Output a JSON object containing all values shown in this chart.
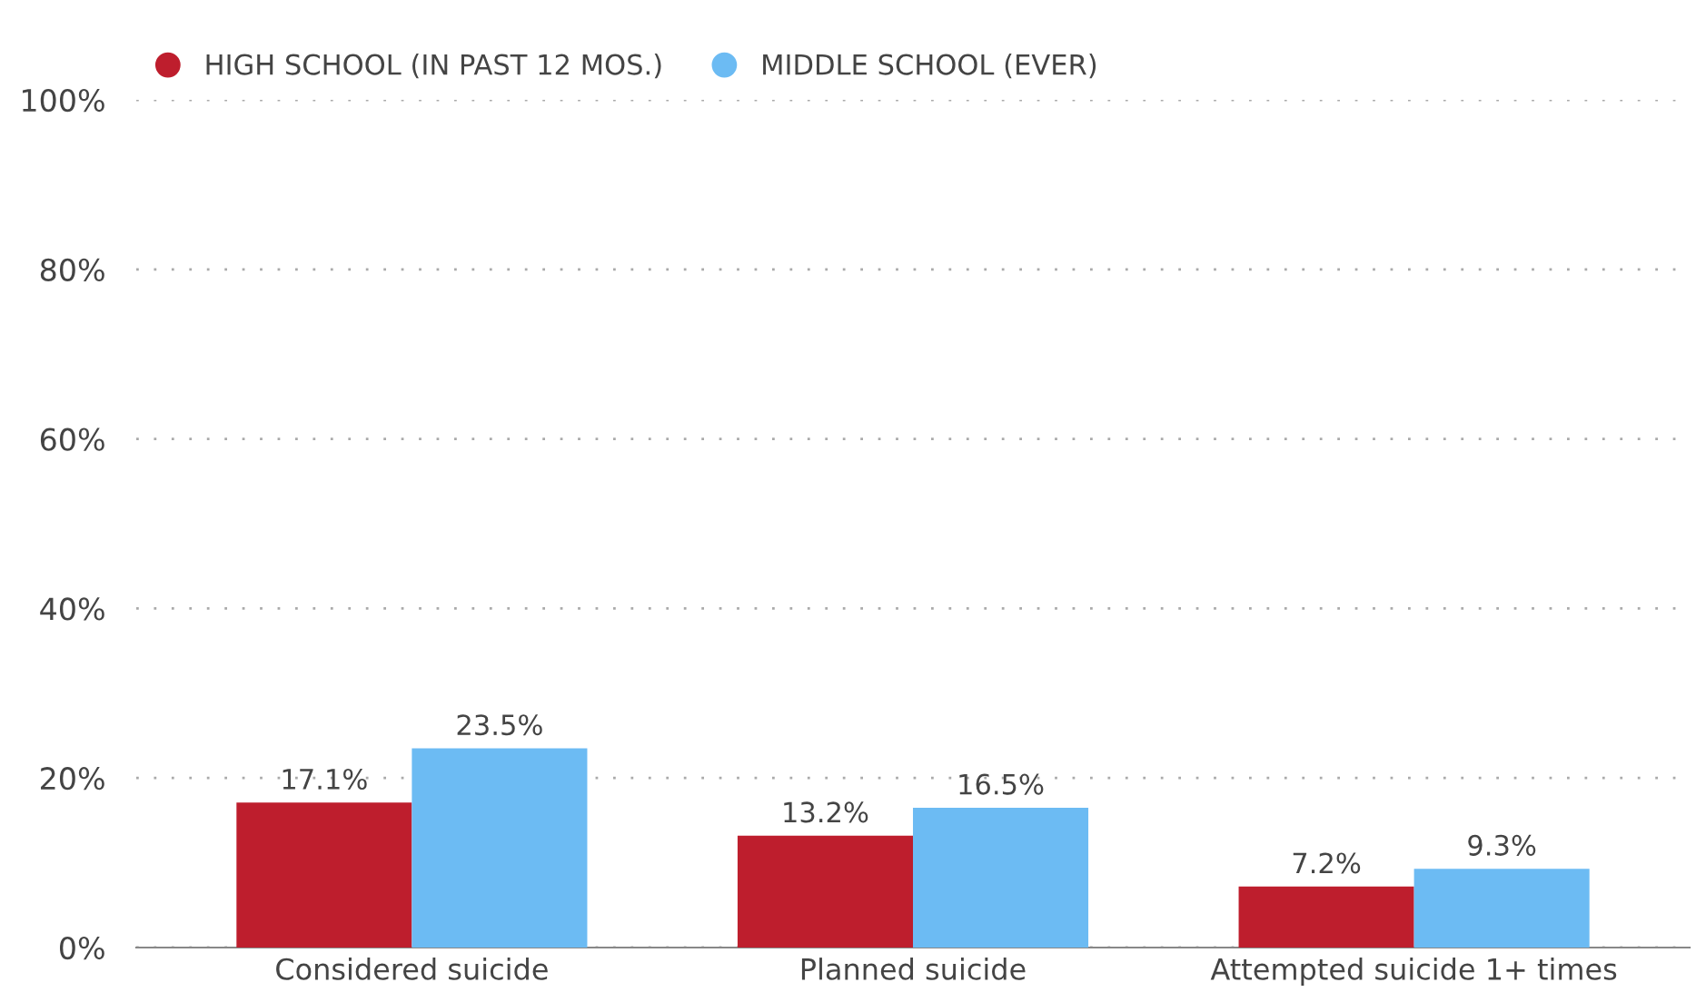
{
  "chart_data": {
    "type": "bar",
    "categories": [
      "Considered suicide",
      "Planned suicide",
      "Attempted suicide 1+ times"
    ],
    "series": [
      {
        "name": "HIGH SCHOOL (IN PAST 12 MOS.)",
        "color": "#be1e2d",
        "values": [
          17.1,
          13.2,
          7.2
        ],
        "value_labels": [
          "17.1%",
          "13.2%",
          "7.2%"
        ]
      },
      {
        "name": "MIDDLE SCHOOL (EVER)",
        "color": "#6cbbf3",
        "values": [
          23.5,
          16.5,
          9.3
        ],
        "value_labels": [
          "23.5%",
          "16.5%",
          "9.3%"
        ]
      }
    ],
    "ylim": [
      0,
      100
    ],
    "yticks": [
      {
        "value": 0,
        "label": "0%"
      },
      {
        "value": 20,
        "label": "20%"
      },
      {
        "value": 40,
        "label": "40%"
      },
      {
        "value": 60,
        "label": "60%"
      },
      {
        "value": 80,
        "label": "80%"
      },
      {
        "value": 100,
        "label": "100%"
      }
    ],
    "grid": "y",
    "legend": "top left"
  }
}
